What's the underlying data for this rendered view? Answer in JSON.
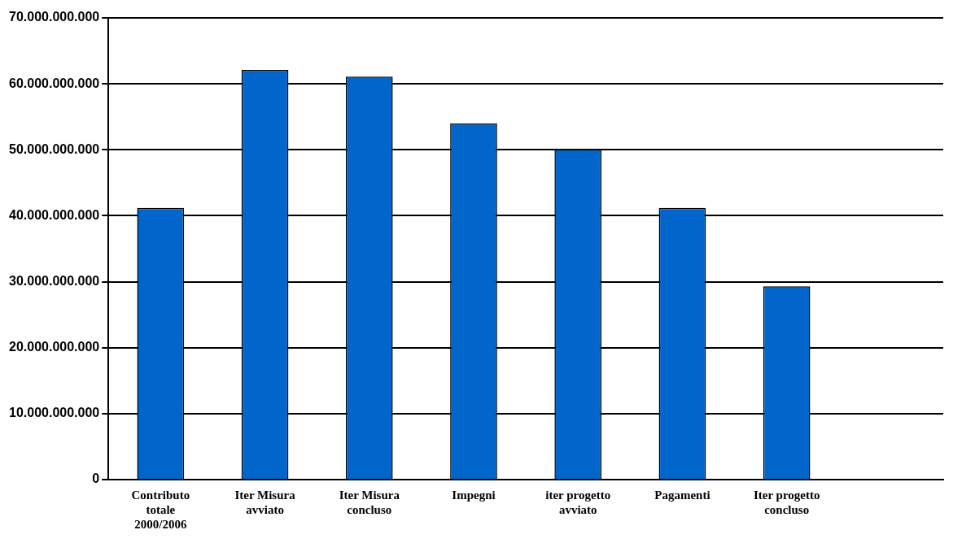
{
  "chart_data": {
    "type": "bar",
    "categories": [
      "Contributo totale 2000/2006",
      "Iter Misura avviato",
      "Iter Misura concluso",
      "Impegni",
      "iter progetto avviato",
      "Pagamenti",
      "Iter progetto concluso",
      null
    ],
    "values": [
      41200000000,
      62100000000,
      61100000000,
      54000000000,
      50100000000,
      41200000000,
      29300000000,
      null
    ],
    "color": "#0066cc",
    "ylim": [
      0,
      70000000000
    ],
    "yticks": [
      {
        "value": 0,
        "label": "0"
      },
      {
        "value": 10000000000,
        "label": "10.000.000.000"
      },
      {
        "value": 20000000000,
        "label": "20.000.000.000"
      },
      {
        "value": 30000000000,
        "label": "30.000.000.000"
      },
      {
        "value": 40000000000,
        "label": "40.000.000.000"
      },
      {
        "value": 50000000000,
        "label": "50.000.000.000"
      },
      {
        "value": 60000000000,
        "label": "60.000.000.000"
      },
      {
        "value": 70000000000,
        "label": "70.000.000.000"
      }
    ],
    "grid": "y",
    "legend": false
  }
}
